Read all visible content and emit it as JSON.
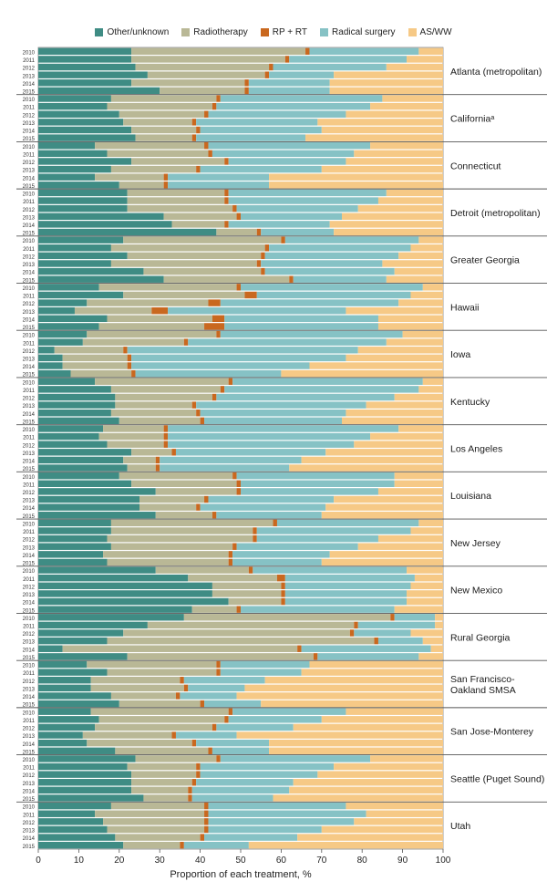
{
  "chart_data": {
    "type": "bar",
    "orientation": "horizontal",
    "stacked": true,
    "xlabel": "Proportion of each treatment, %",
    "xlim": [
      0,
      100
    ],
    "x_ticks": [
      "0",
      "10",
      "20",
      "30",
      "40",
      "50",
      "60",
      "70",
      "80",
      "90",
      "100"
    ],
    "legend_position": "top",
    "series": [
      {
        "name": "Other/unknown",
        "color": "#3f8c84"
      },
      {
        "name": "Radiotherapy",
        "color": "#b9b896"
      },
      {
        "name": "RP + RT",
        "color": "#c9681f"
      },
      {
        "name": "Radical surgery",
        "color": "#86c2c5"
      },
      {
        "name": "AS/WW",
        "color": "#f6c986"
      }
    ],
    "years": [
      "2010",
      "2011",
      "2012",
      "2013",
      "2014",
      "2015"
    ],
    "groups": [
      {
        "region": "Atlanta (metropolitan)",
        "rows": [
          [
            23,
            43,
            1,
            27,
            6
          ],
          [
            23,
            38,
            1,
            29,
            9
          ],
          [
            24,
            33,
            1,
            28,
            14
          ],
          [
            27,
            29,
            1,
            16,
            27
          ],
          [
            23,
            28,
            1,
            20,
            28
          ],
          [
            30,
            21,
            1,
            20,
            28
          ]
        ]
      },
      {
        "region": "Californiaᵃ",
        "rows": [
          [
            18,
            26,
            1,
            40,
            15
          ],
          [
            17,
            26,
            1,
            38,
            18
          ],
          [
            20,
            21,
            1,
            34,
            24
          ],
          [
            21,
            17,
            1,
            30,
            31
          ],
          [
            23,
            16,
            1,
            30,
            30
          ],
          [
            24,
            14,
            1,
            27,
            34
          ]
        ]
      },
      {
        "region": "Connecticut",
        "rows": [
          [
            14,
            27,
            1,
            40,
            18
          ],
          [
            17,
            25,
            1,
            35,
            22
          ],
          [
            23,
            23,
            1,
            29,
            24
          ],
          [
            18,
            21,
            1,
            30,
            30
          ],
          [
            14,
            17,
            1,
            25,
            43
          ],
          [
            20,
            11,
            1,
            25,
            43
          ]
        ]
      },
      {
        "region": "Detroit (metropolitan)",
        "rows": [
          [
            22,
            24,
            1,
            39,
            14
          ],
          [
            22,
            24,
            1,
            37,
            16
          ],
          [
            22,
            26,
            1,
            30,
            21
          ],
          [
            31,
            18,
            1,
            25,
            25
          ],
          [
            33,
            13,
            1,
            25,
            28
          ],
          [
            44,
            10,
            1,
            18,
            27
          ]
        ]
      },
      {
        "region": "Greater Georgia",
        "rows": [
          [
            21,
            39,
            1,
            33,
            6
          ],
          [
            18,
            38,
            1,
            35,
            8
          ],
          [
            22,
            33,
            1,
            33,
            11
          ],
          [
            18,
            36,
            1,
            30,
            15
          ],
          [
            26,
            29,
            1,
            32,
            12
          ],
          [
            31,
            31,
            1,
            23,
            14
          ]
        ]
      },
      {
        "region": "Hawaii",
        "rows": [
          [
            15,
            34,
            1,
            45,
            5
          ],
          [
            21,
            30,
            3,
            38,
            8
          ],
          [
            12,
            30,
            3,
            44,
            11
          ],
          [
            9,
            19,
            4,
            44,
            24
          ],
          [
            17,
            26,
            3,
            38,
            16
          ],
          [
            15,
            26,
            5,
            38,
            16
          ]
        ]
      },
      {
        "region": "Iowa",
        "rows": [
          [
            12,
            32,
            1,
            45,
            10
          ],
          [
            11,
            25,
            1,
            49,
            14
          ],
          [
            4,
            17,
            1,
            57,
            21
          ],
          [
            6,
            16,
            1,
            53,
            24
          ],
          [
            6,
            16,
            1,
            44,
            33
          ],
          [
            8,
            15,
            1,
            36,
            40
          ]
        ]
      },
      {
        "region": "Kentucky",
        "rows": [
          [
            14,
            33,
            1,
            47,
            5
          ],
          [
            18,
            27,
            1,
            48,
            6
          ],
          [
            19,
            24,
            1,
            44,
            12
          ],
          [
            19,
            19,
            1,
            42,
            19
          ],
          [
            18,
            21,
            1,
            36,
            24
          ],
          [
            20,
            20,
            1,
            34,
            25
          ]
        ]
      },
      {
        "region": "Los Angeles",
        "rows": [
          [
            16,
            15,
            1,
            57,
            11
          ],
          [
            15,
            16,
            1,
            50,
            18
          ],
          [
            17,
            14,
            1,
            46,
            22
          ],
          [
            23,
            10,
            1,
            37,
            29
          ],
          [
            21,
            8,
            1,
            35,
            35
          ],
          [
            22,
            7,
            1,
            32,
            38
          ]
        ]
      },
      {
        "region": "Louisiana",
        "rows": [
          [
            20,
            28,
            1,
            39,
            12
          ],
          [
            23,
            26,
            1,
            38,
            12
          ],
          [
            29,
            20,
            1,
            34,
            16
          ],
          [
            25,
            16,
            1,
            31,
            27
          ],
          [
            25,
            14,
            1,
            31,
            29
          ],
          [
            29,
            14,
            1,
            26,
            30
          ]
        ]
      },
      {
        "region": "New Jersey",
        "rows": [
          [
            18,
            40,
            1,
            35,
            6
          ],
          [
            18,
            35,
            1,
            38,
            8
          ],
          [
            17,
            36,
            1,
            30,
            16
          ],
          [
            18,
            30,
            1,
            30,
            21
          ],
          [
            16,
            31,
            1,
            24,
            28
          ],
          [
            17,
            30,
            1,
            22,
            30
          ]
        ]
      },
      {
        "region": "New Mexico",
        "rows": [
          [
            29,
            23,
            1,
            38,
            9
          ],
          [
            37,
            22,
            2,
            32,
            7
          ],
          [
            43,
            17,
            1,
            31,
            8
          ],
          [
            43,
            17,
            1,
            30,
            9
          ],
          [
            47,
            13,
            1,
            30,
            9
          ],
          [
            38,
            11,
            1,
            38,
            12
          ]
        ]
      },
      {
        "region": "Rural Georgia",
        "rows": [
          [
            36,
            51,
            1,
            10,
            2
          ],
          [
            27,
            51,
            1,
            19,
            2
          ],
          [
            21,
            56,
            1,
            14,
            8
          ],
          [
            17,
            66,
            1,
            11,
            5
          ],
          [
            6,
            58,
            1,
            32,
            3
          ],
          [
            22,
            46,
            1,
            25,
            6
          ]
        ]
      },
      {
        "region": "San Francisco-Oakland SMSA",
        "rows": [
          [
            12,
            32,
            1,
            22,
            33
          ],
          [
            17,
            27,
            1,
            20,
            35
          ],
          [
            13,
            22,
            1,
            20,
            44
          ],
          [
            13,
            23,
            1,
            14,
            49
          ],
          [
            18,
            16,
            1,
            14,
            51
          ],
          [
            20,
            20,
            1,
            14,
            45
          ]
        ]
      },
      {
        "region": "San Jose-Monterey",
        "rows": [
          [
            13,
            34,
            1,
            28,
            24
          ],
          [
            15,
            31,
            1,
            23,
            30
          ],
          [
            14,
            29,
            1,
            19,
            37
          ],
          [
            11,
            22,
            1,
            15,
            51
          ],
          [
            12,
            26,
            1,
            18,
            43
          ],
          [
            19,
            23,
            1,
            14,
            43
          ]
        ]
      },
      {
        "region": "Seattle (Puget Sound)",
        "rows": [
          [
            24,
            20,
            1,
            37,
            18
          ],
          [
            22,
            17,
            1,
            33,
            27
          ],
          [
            23,
            16,
            1,
            29,
            31
          ],
          [
            23,
            15,
            1,
            24,
            37
          ],
          [
            23,
            14,
            1,
            24,
            38
          ],
          [
            26,
            11,
            1,
            20,
            42
          ]
        ]
      },
      {
        "region": "Utah",
        "rows": [
          [
            18,
            23,
            1,
            34,
            24
          ],
          [
            14,
            27,
            1,
            39,
            19
          ],
          [
            16,
            25,
            1,
            36,
            22
          ],
          [
            17,
            24,
            1,
            28,
            30
          ],
          [
            19,
            21,
            1,
            23,
            36
          ],
          [
            21,
            14,
            1,
            16,
            48
          ]
        ]
      }
    ]
  }
}
